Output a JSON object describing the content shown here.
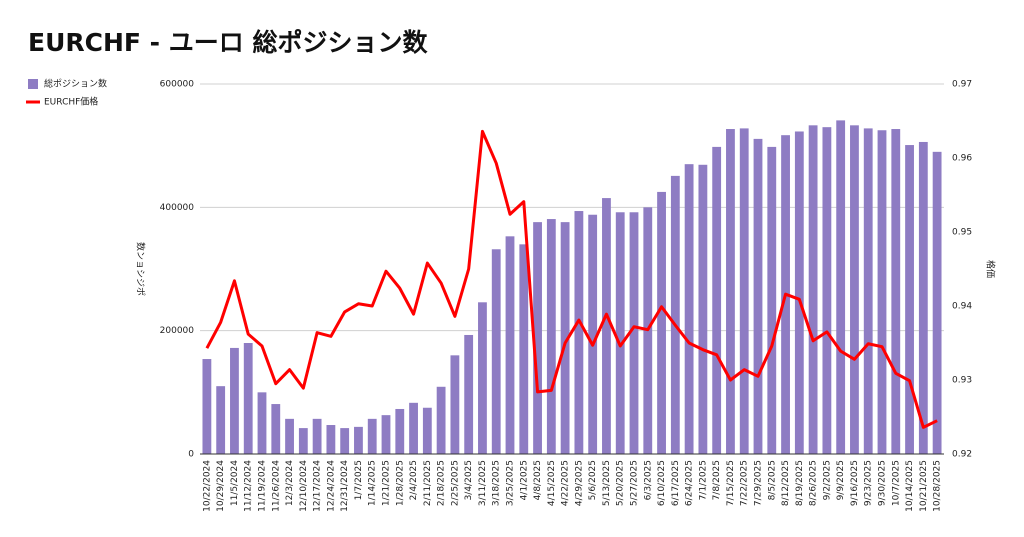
{
  "chart_data": {
    "type": "bar-line",
    "title": "EURCHF - ユーロ 総ポジション数",
    "y_label": "数ンョシジポ",
    "y2_label": "格価",
    "categories": [
      "10/22/2024",
      "10/29/2024",
      "11/5/2024",
      "11/12/2024",
      "11/19/2024",
      "11/26/2024",
      "12/3/2024",
      "12/10/2024",
      "12/17/2024",
      "12/24/2024",
      "12/31/2024",
      "1/7/2025",
      "1/14/2025",
      "1/21/2025",
      "1/28/2025",
      "2/4/2025",
      "2/11/2025",
      "2/18/2025",
      "2/25/2025",
      "3/4/2025",
      "3/11/2025",
      "3/18/2025",
      "3/25/2025",
      "4/1/2025",
      "4/8/2025",
      "4/15/2025",
      "4/22/2025",
      "4/29/2025",
      "5/6/2025",
      "5/13/2025",
      "5/20/2025",
      "5/27/2025",
      "6/3/2025",
      "6/10/2025",
      "6/17/2025",
      "6/24/2025",
      "7/1/2025",
      "7/8/2025",
      "7/15/2025",
      "7/22/2025",
      "7/29/2025",
      "8/5/2025",
      "8/12/2025",
      "8/19/2025",
      "8/26/2025",
      "9/2/2025",
      "9/9/2025",
      "9/16/2025",
      "9/23/2025",
      "9/30/2025",
      "10/7/2025",
      "10/14/2025",
      "10/21/2025",
      "10/28/2025"
    ],
    "series": [
      {
        "name": "総ポジション数",
        "type": "bar",
        "color": "#8e7cc3",
        "values": [
          154000,
          110000,
          172000,
          180000,
          100000,
          81000,
          57000,
          42000,
          57000,
          47000,
          42000,
          44000,
          57000,
          63000,
          73000,
          83000,
          75000,
          109000,
          160000,
          193000,
          246000,
          332000,
          353000,
          340000,
          376000,
          381000,
          376000,
          394000,
          388000,
          415000,
          392000,
          392000,
          400000,
          425000,
          451000,
          470000,
          469000,
          498000,
          527000,
          528000,
          511000,
          498000,
          517000,
          523000,
          533000,
          530000,
          541000,
          533000,
          528000,
          525000,
          527000,
          501000,
          506000,
          490000
        ]
      },
      {
        "name": "EURCHF価格",
        "type": "line",
        "axis": "y2",
        "color": "#ff0000",
        "values": [
          0.9343,
          0.9378,
          0.9434,
          0.9362,
          0.9346,
          0.9295,
          0.9314,
          0.9289,
          0.9364,
          0.9359,
          0.9392,
          0.9403,
          0.94,
          0.9447,
          0.9424,
          0.9389,
          0.9458,
          0.9431,
          0.9386,
          0.945,
          0.9636,
          0.9593,
          0.9524,
          0.9541,
          0.9284,
          0.9286,
          0.935,
          0.9381,
          0.9347,
          0.9389,
          0.9346,
          0.9372,
          0.9368,
          0.9399,
          0.9374,
          0.935,
          0.9341,
          0.9334,
          0.93,
          0.9314,
          0.9305,
          0.9346,
          0.9416,
          0.9409,
          0.9353,
          0.9365,
          0.9339,
          0.9328,
          0.9349,
          0.9345,
          0.9309,
          0.9299,
          0.9236,
          0.9245
        ]
      }
    ],
    "ylim": [
      0,
      600000
    ],
    "yticks": [
      0,
      200000,
      400000,
      600000
    ],
    "y2lim": [
      0.92,
      0.97
    ],
    "y2ticks": [
      0.92,
      0.93,
      0.94,
      0.95,
      0.96,
      0.97
    ],
    "grid": true
  }
}
